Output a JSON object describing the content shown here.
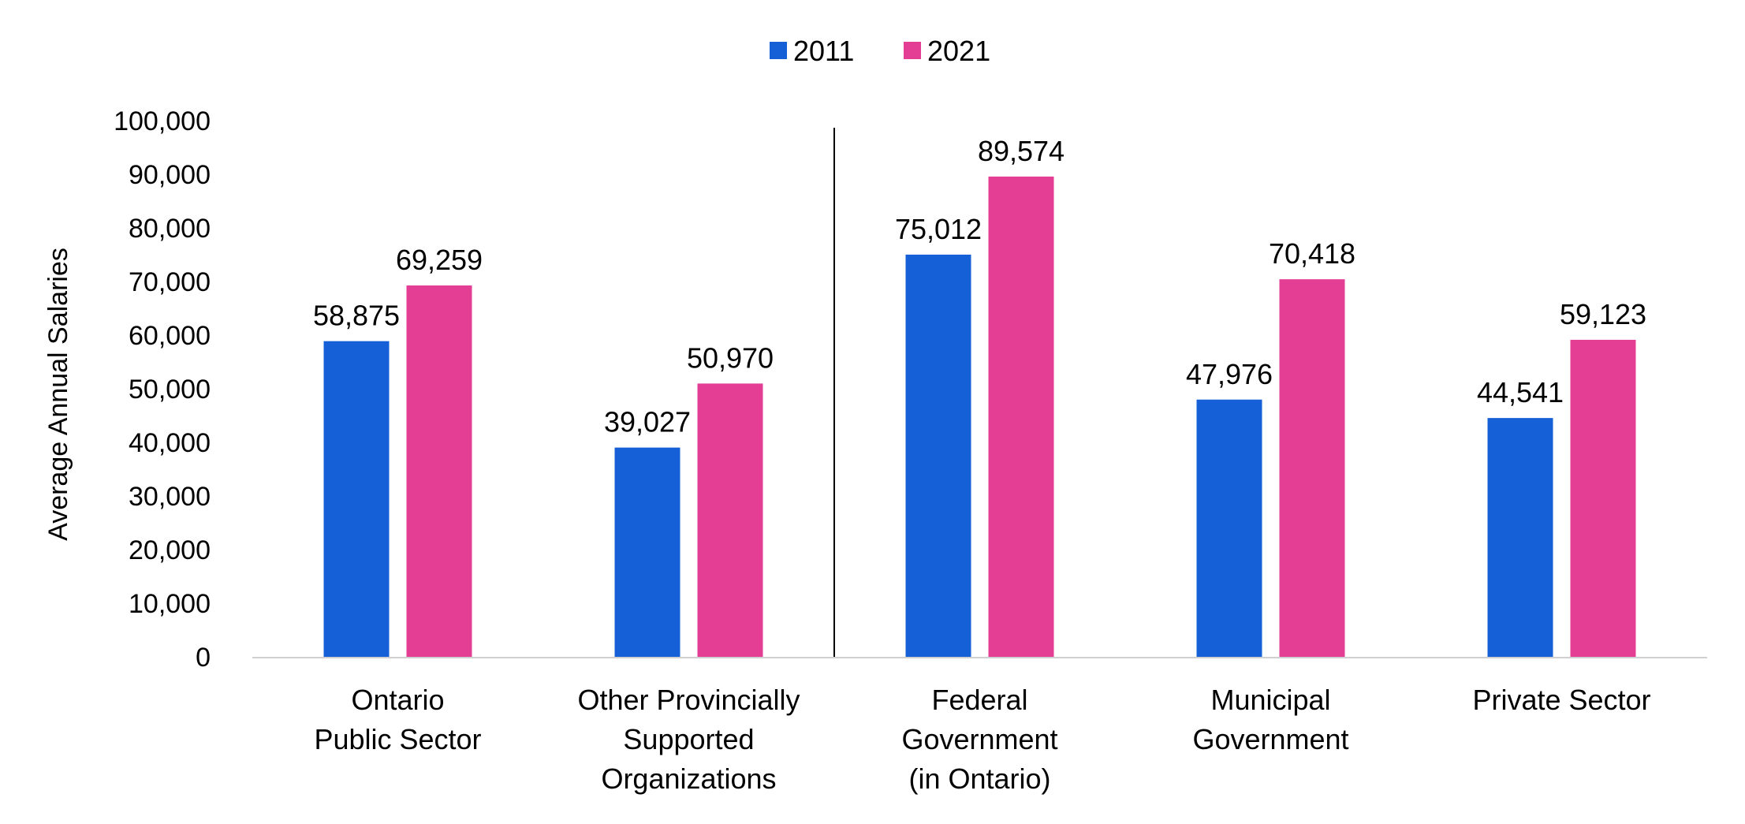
{
  "chart_data": {
    "type": "bar",
    "categories": [
      [
        "Ontario",
        "Public Sector"
      ],
      [
        "Other Provincially",
        "Supported",
        "Organizations"
      ],
      [
        "Federal",
        "Government",
        "(in Ontario)"
      ],
      [
        "Municipal",
        "Government"
      ],
      [
        "Private Sector"
      ]
    ],
    "series": [
      {
        "name": "2011",
        "color": "#1560d6",
        "values": [
          58875,
          39027,
          75012,
          47976,
          44541
        ]
      },
      {
        "name": "2021",
        "color": "#e33d94",
        "values": [
          69259,
          50970,
          89574,
          70418,
          59123
        ]
      }
    ],
    "data_labels": [
      [
        "58,875",
        "39,027",
        "75,012",
        "47,976",
        "44,541"
      ],
      [
        "69,259",
        "50,970",
        "89,574",
        "70,418",
        "59,123"
      ]
    ],
    "ylabel": "Average Annual Salaries",
    "xlabel": "",
    "ylim": [
      0,
      100000
    ],
    "yticks": [
      {
        "value": 0,
        "label": "0"
      },
      {
        "value": 10000,
        "label": "10,000"
      },
      {
        "value": 20000,
        "label": "20,000"
      },
      {
        "value": 30000,
        "label": "30,000"
      },
      {
        "value": 40000,
        "label": "40,000"
      },
      {
        "value": 50000,
        "label": "50,000"
      },
      {
        "value": 60000,
        "label": "60,000"
      },
      {
        "value": 70000,
        "label": "70,000"
      },
      {
        "value": 80000,
        "label": "80,000"
      },
      {
        "value": 90000,
        "label": "90,000"
      },
      {
        "value": 100000,
        "label": "100,000"
      }
    ],
    "legend_position": "top-center",
    "grid": false,
    "separator_after_category": 1
  }
}
